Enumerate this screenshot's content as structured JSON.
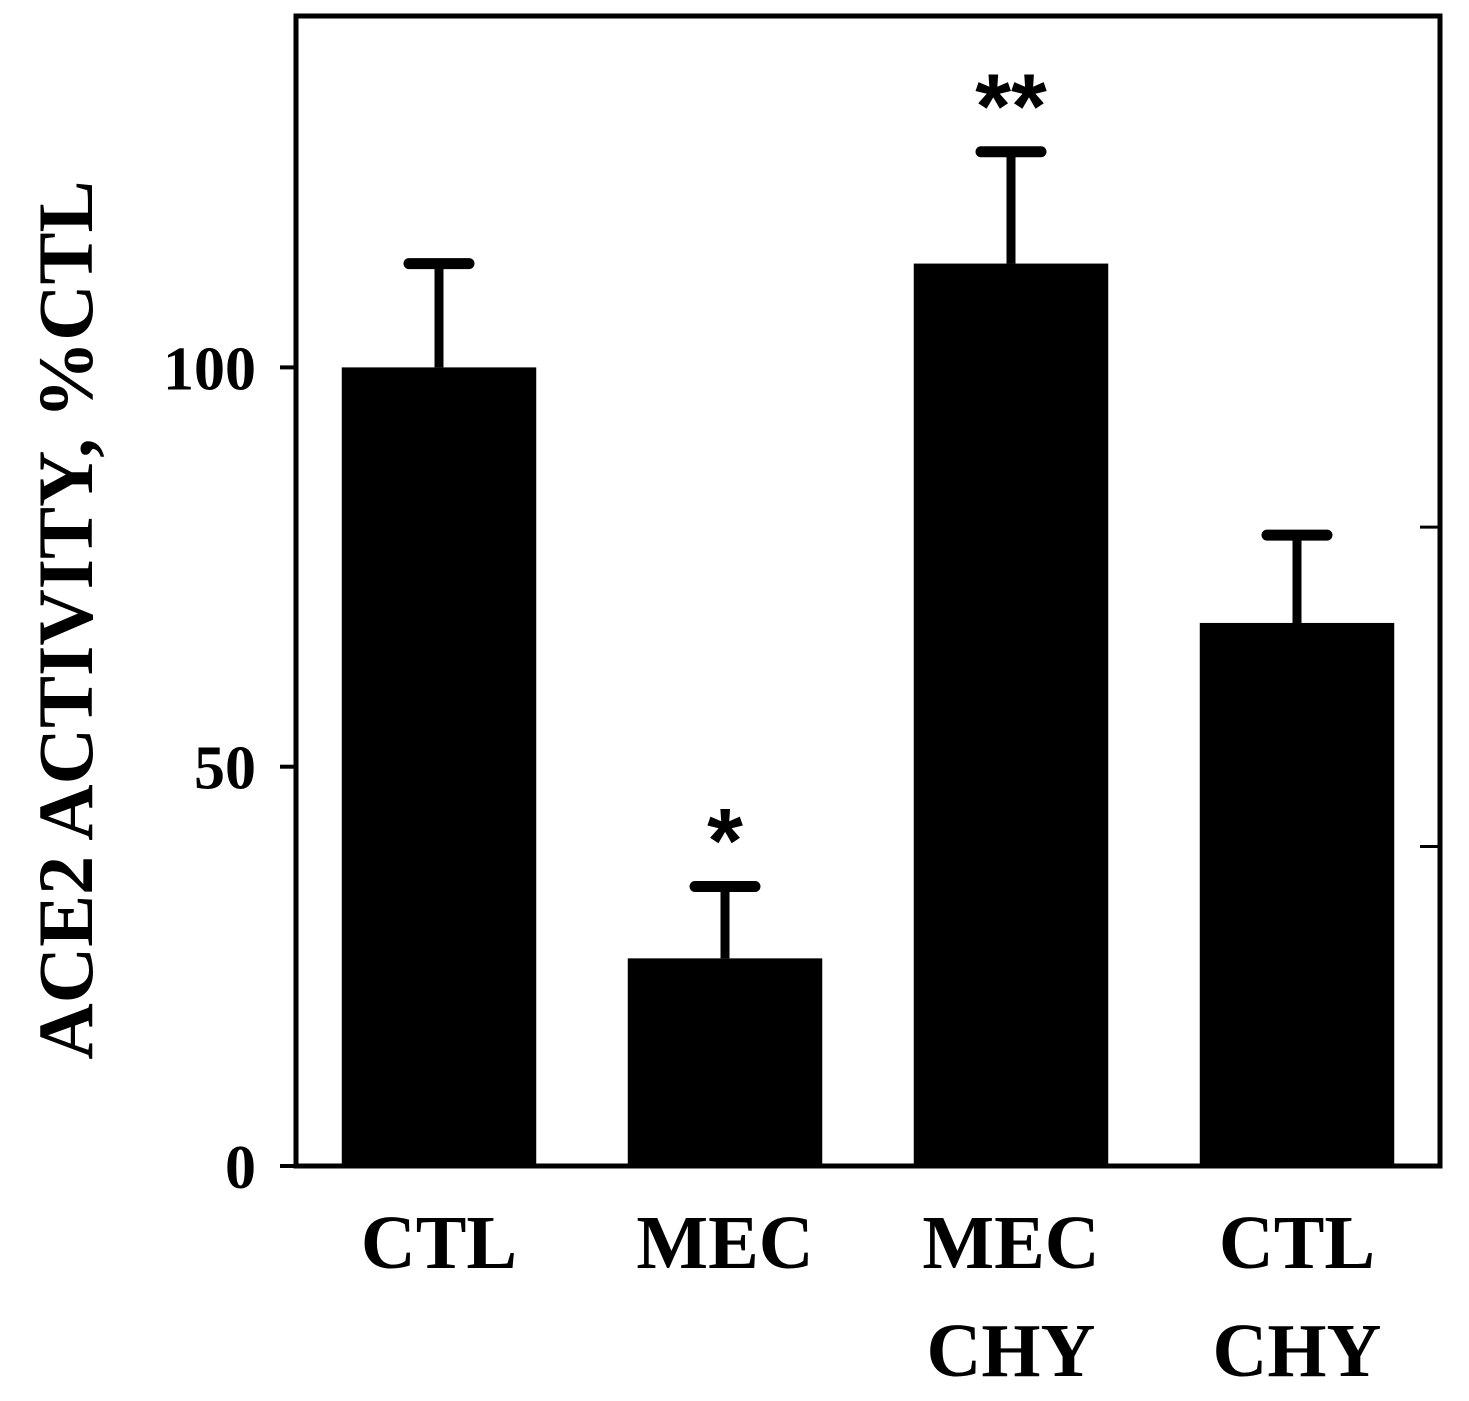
{
  "chart_data": {
    "type": "bar",
    "categories": [
      [
        "CTL"
      ],
      [
        "MEC"
      ],
      [
        "MEC",
        "CHY"
      ],
      [
        "CTL",
        "CHY"
      ]
    ],
    "values": [
      100,
      26,
      113,
      68
    ],
    "errors": [
      13,
      9,
      14,
      11
    ],
    "significance": [
      "",
      "*",
      "**",
      ""
    ],
    "ylabel": "ACE2 ACTIVITY, %CTL",
    "yticks": [
      0,
      50,
      100
    ],
    "ylim": [
      0,
      144
    ],
    "bar_color": "#000000",
    "grid": false
  }
}
